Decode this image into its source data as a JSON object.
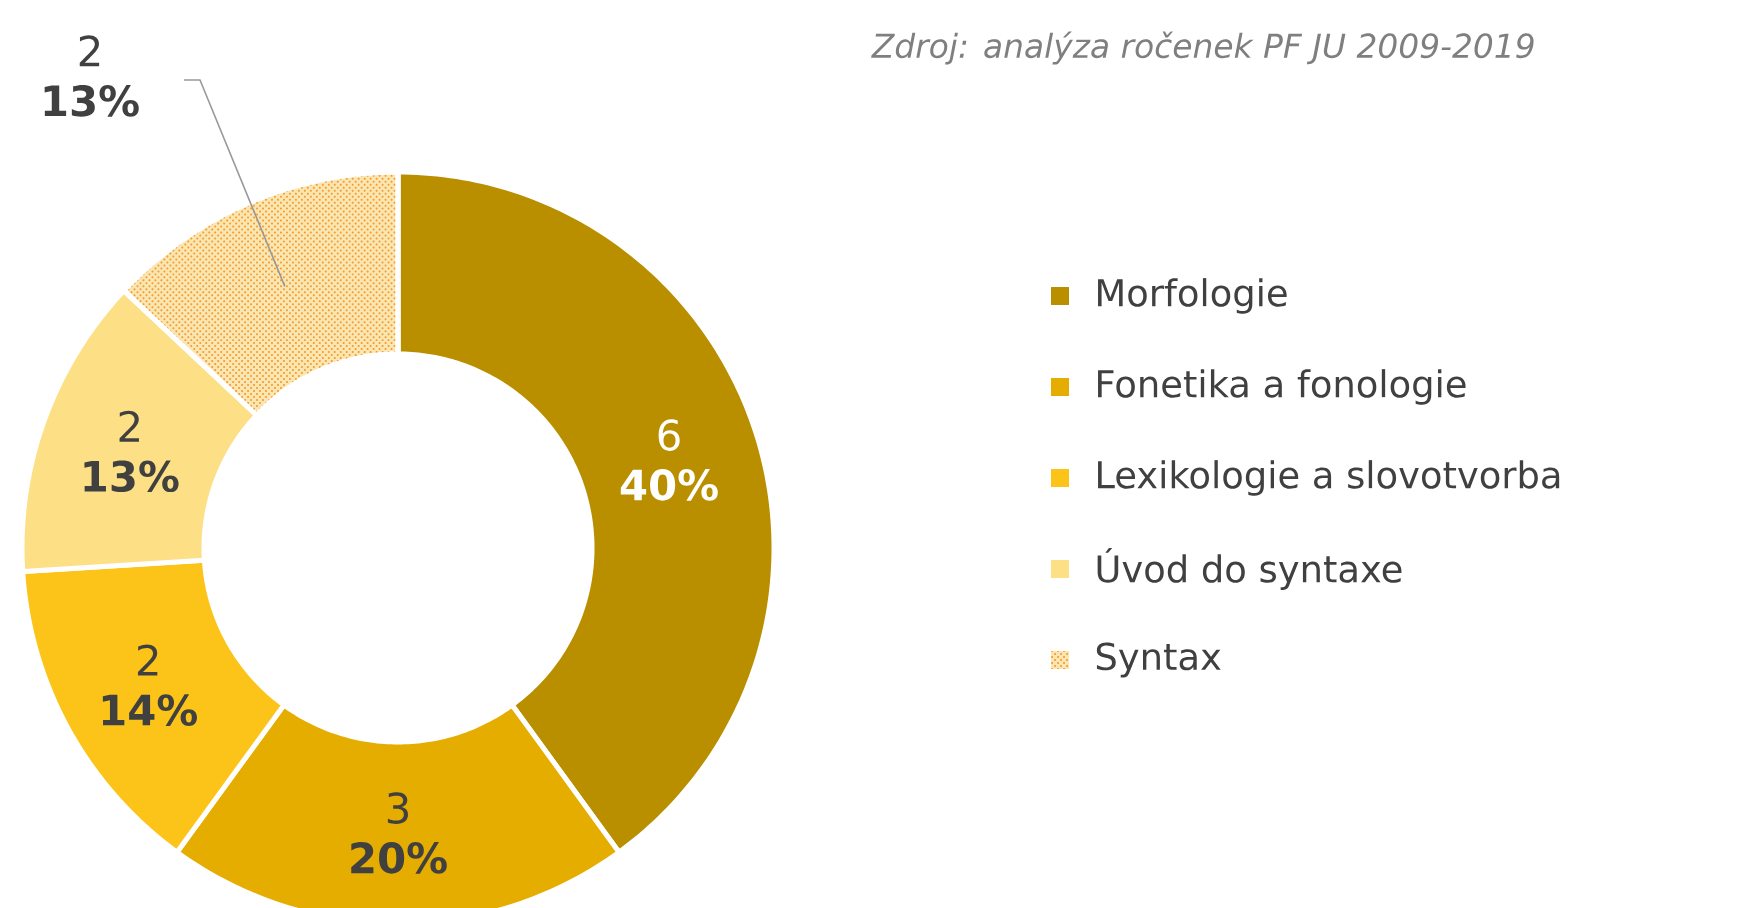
{
  "chart_data": {
    "type": "donut",
    "subtitle": "Zdroj: analýza ročenek PF JU 2009-2019",
    "categories": [
      "Morfologie",
      "Fonetika a fonologie",
      "Lexikologie a slovotvorba",
      "Úvod do syntaxe",
      "Syntax"
    ],
    "values": [
      40,
      20,
      14,
      13,
      13
    ],
    "value_labels": [
      "40%",
      "20%",
      "14%",
      "13%",
      "13%"
    ],
    "annotations": [
      {
        "text": "6",
        "x": "Morfologie"
      },
      {
        "text": "3",
        "x": "Fonetika a fonologie"
      },
      {
        "text": "2",
        "x": "Lexikologie a slovotvorba"
      },
      {
        "text": "2",
        "x": "Úvod do syntaxe"
      },
      {
        "text": "2",
        "x": "Syntax"
      }
    ],
    "colors": [
      "#b98f00",
      "#e5ad00",
      "#fcc418",
      "#fddf85",
      "#f8e7b2"
    ],
    "legend": "right"
  }
}
